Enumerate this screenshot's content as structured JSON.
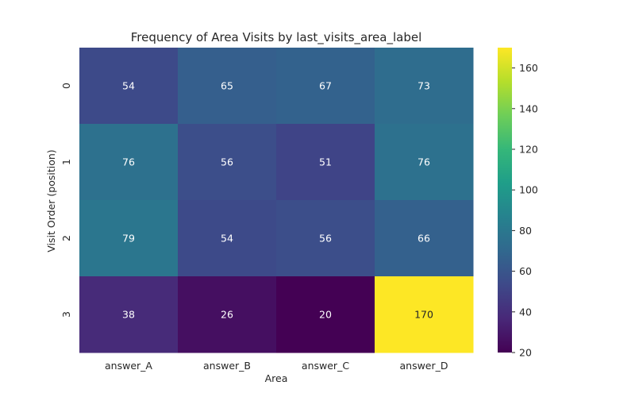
{
  "chart_data": {
    "type": "heatmap",
    "title": "Frequency of Area Visits by last_visits_area_label",
    "xlabel": "Area",
    "ylabel": "Visit Order (position)",
    "x_categories": [
      "answer_A",
      "answer_B",
      "answer_C",
      "answer_D"
    ],
    "y_categories": [
      "0",
      "1",
      "2",
      "3"
    ],
    "values": [
      [
        54,
        65,
        67,
        73
      ],
      [
        76,
        56,
        51,
        76
      ],
      [
        79,
        54,
        56,
        66
      ],
      [
        38,
        26,
        20,
        170
      ]
    ],
    "colormap": "viridis",
    "colorbar": {
      "range": [
        20,
        170
      ],
      "ticks": [
        20,
        40,
        60,
        80,
        100,
        120,
        140,
        160
      ]
    },
    "annotations": true,
    "grid": false
  }
}
